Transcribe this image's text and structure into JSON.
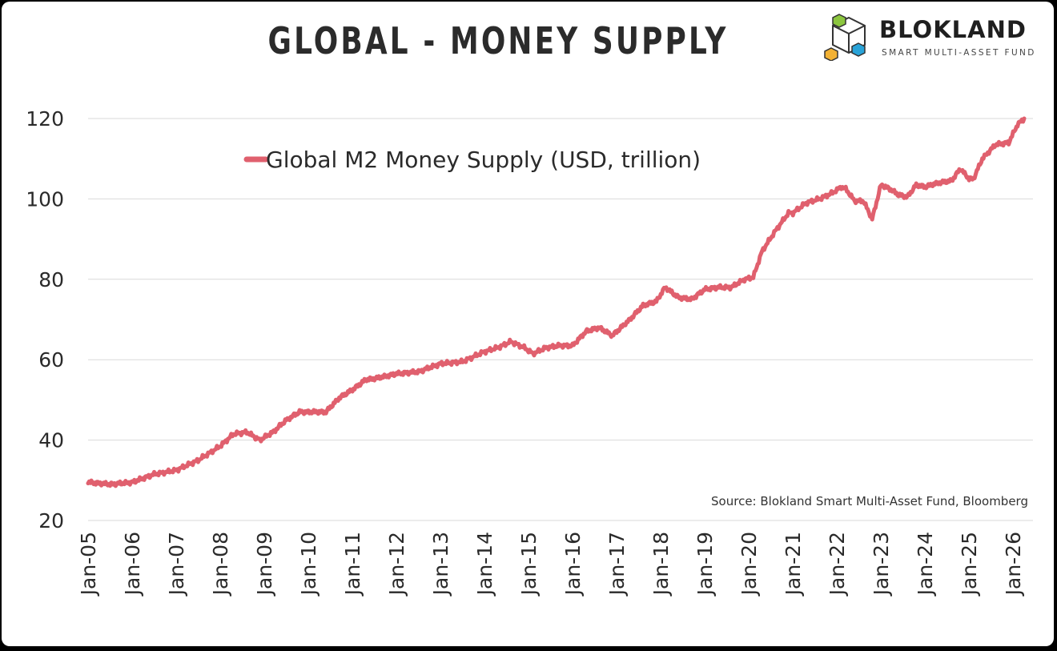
{
  "title": "GLOBAL - MONEY SUPPLY",
  "logo": {
    "name": "BLOKLAND",
    "tagline": "SMART MULTI-ASSET FUND",
    "icon": "cube-logo-icon"
  },
  "source": "Source: Blokland Smart Multi-Asset Fund, Bloomberg",
  "colors": {
    "series": "#e0606e",
    "grid": "#d9d9d9",
    "text": "#2a2a2a"
  },
  "chart_data": {
    "type": "line",
    "title": "GLOBAL - MONEY SUPPLY",
    "xlabel": "",
    "ylabel": "",
    "ylim": [
      20,
      120
    ],
    "yticks": [
      20,
      40,
      60,
      80,
      100,
      120
    ],
    "xticks": [
      "Jan-05",
      "Jan-06",
      "Jan-07",
      "Jan-08",
      "Jan-09",
      "Jan-10",
      "Jan-11",
      "Jan-12",
      "Jan-13",
      "Jan-14",
      "Jan-15",
      "Jan-16",
      "Jan-17",
      "Jan-18",
      "Jan-19",
      "Jan-20",
      "Jan-21",
      "Jan-22",
      "Jan-23",
      "Jan-24",
      "Jan-25",
      "Jan-26"
    ],
    "grid": true,
    "legend_position": "top-left",
    "series": [
      {
        "name": "Global M2 Money Supply (USD, trillion)",
        "x": [
          2005.0,
          2005.5,
          2006.0,
          2006.5,
          2007.0,
          2007.5,
          2008.0,
          2008.3,
          2008.6,
          2008.9,
          2009.2,
          2009.5,
          2009.8,
          2010.1,
          2010.4,
          2010.7,
          2011.0,
          2011.3,
          2011.6,
          2012.0,
          2012.5,
          2013.0,
          2013.5,
          2014.0,
          2014.3,
          2014.6,
          2014.9,
          2015.1,
          2015.4,
          2015.7,
          2016.0,
          2016.3,
          2016.6,
          2016.9,
          2017.0,
          2017.3,
          2017.6,
          2017.9,
          2018.1,
          2018.4,
          2018.7,
          2019.0,
          2019.3,
          2019.6,
          2019.9,
          2020.1,
          2020.3,
          2020.6,
          2020.9,
          2021.0,
          2021.3,
          2021.6,
          2021.9,
          2022.1,
          2022.2,
          2022.4,
          2022.6,
          2022.8,
          2023.0,
          2023.2,
          2023.4,
          2023.6,
          2023.8,
          2024.0,
          2024.3,
          2024.6,
          2024.8,
          2025.0,
          2025.1,
          2025.3,
          2025.6,
          2025.9,
          2026.1,
          2026.25
        ],
        "y": [
          29.5,
          29.0,
          29.5,
          31.5,
          32.5,
          35.0,
          38.5,
          41.5,
          42.0,
          40.0,
          42.0,
          45.0,
          47.0,
          47.0,
          47.0,
          50.5,
          52.5,
          55.0,
          55.5,
          56.5,
          57.0,
          59.0,
          59.5,
          62.0,
          63.0,
          64.5,
          63.0,
          61.5,
          63.0,
          63.5,
          63.5,
          67.0,
          68.0,
          66.0,
          67.0,
          70.0,
          73.5,
          74.5,
          78.0,
          75.5,
          75.0,
          77.5,
          78.0,
          78.0,
          80.0,
          80.5,
          87.0,
          92.0,
          96.5,
          96.5,
          99.0,
          100.0,
          101.5,
          103.0,
          102.5,
          99.5,
          99.5,
          95.0,
          103.5,
          102.5,
          101.0,
          100.5,
          103.5,
          103.0,
          104.0,
          104.5,
          107.5,
          105.0,
          105.0,
          110.0,
          113.5,
          114.0,
          118.5,
          120.0
        ]
      }
    ]
  }
}
